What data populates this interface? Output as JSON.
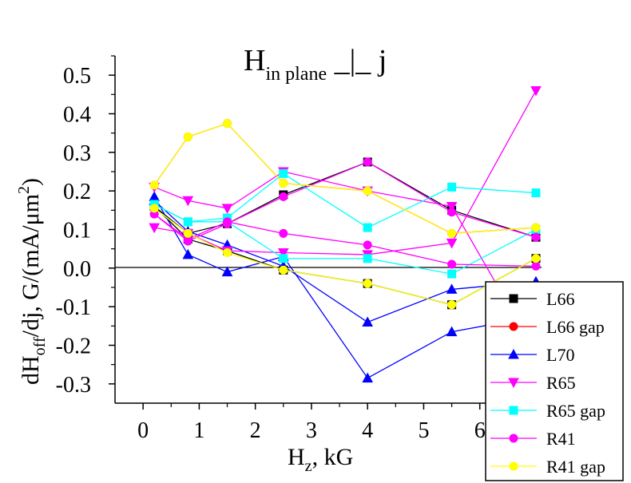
{
  "chart_data": {
    "type": "line",
    "title": {
      "main": "H",
      "sub": "in plane",
      "suffix": " _|_ j"
    },
    "xlabel": {
      "main": "H",
      "sub": "z",
      "suffix": ", kG"
    },
    "ylabel": {
      "p1": "dH",
      "sub": "off",
      "p2": "/dj, G/(mA/μm",
      "sup": "2",
      "p3": ")"
    },
    "xlim": [
      -0.5,
      7.1
    ],
    "ylim": [
      -0.35,
      0.55
    ],
    "xticks": [
      0,
      1,
      2,
      3,
      4,
      5,
      6
    ],
    "yticks": [
      -0.3,
      -0.2,
      -0.1,
      0.0,
      0.1,
      0.2,
      0.3,
      0.4,
      0.5
    ],
    "ytick_labels": [
      "-0.3",
      "-0.2",
      "-0.1",
      "0.0",
      "0.1",
      "0.2",
      "0.3",
      "0.4",
      "0.5"
    ],
    "zero_line": true,
    "grid": false,
    "legend_position": "bottom-right",
    "series": [
      {
        "name": "L66",
        "color": "#000000",
        "line_color": "#000000",
        "marker": "square",
        "points": [
          [
            [
              0.2,
              0.16
            ],
            [
              0.8,
              0.075
            ],
            [
              1.5,
              0.045
            ],
            [
              2.5,
              -0.005
            ],
            [
              4,
              -0.04
            ],
            [
              5.5,
              -0.095
            ],
            [
              7,
              0.025
            ]
          ],
          [
            [
              0.2,
              0.16
            ],
            [
              0.8,
              0.09
            ],
            [
              1.5,
              0.115
            ],
            [
              2.5,
              0.19
            ],
            [
              4,
              0.275
            ],
            [
              5.5,
              0.15
            ],
            [
              7,
              0.08
            ]
          ]
        ]
      },
      {
        "name": "L66 gap",
        "color": "#ff0000",
        "line_color": "#ff0000",
        "marker": "circle",
        "points": [
          [
            [
              0.2,
              0.215
            ],
            [
              0.8,
              0.34
            ],
            [
              1.5,
              0.375
            ],
            [
              2.5,
              0.22
            ],
            [
              4,
              0.2
            ],
            [
              5.5,
              0.09
            ],
            [
              7,
              0.105
            ]
          ]
        ]
      },
      {
        "name": "L70",
        "color": "#0000ff",
        "line_color": "#0000ff",
        "marker": "triangle-up",
        "points": [
          [
            [
              0.2,
              0.185
            ],
            [
              0.8,
              0.035
            ],
            [
              1.5,
              -0.01
            ],
            [
              2.5,
              0.03
            ],
            [
              4,
              -0.285
            ],
            [
              5.5,
              -0.165
            ],
            [
              7,
              -0.125
            ]
          ],
          [
            [
              0.2,
              0.175
            ],
            [
              0.8,
              0.095
            ],
            [
              1.5,
              0.06
            ],
            [
              2.5,
              0.005
            ],
            [
              4,
              -0.14
            ],
            [
              5.5,
              -0.055
            ],
            [
              7,
              -0.035
            ]
          ]
        ]
      },
      {
        "name": "R65",
        "color": "#ff00ff",
        "line_color": "#ff00ff",
        "marker": "triangle-down",
        "points": [
          [
            [
              0.2,
              0.21
            ],
            [
              0.8,
              0.175
            ],
            [
              1.5,
              0.155
            ],
            [
              2.5,
              0.25
            ],
            [
              4,
              0.2
            ],
            [
              5.5,
              0.16
            ],
            [
              7,
              -0.22
            ]
          ],
          [
            [
              0.2,
              0.105
            ],
            [
              0.8,
              0.09
            ],
            [
              1.5,
              0.045
            ],
            [
              2.5,
              0.04
            ],
            [
              4,
              0.035
            ],
            [
              5.5,
              0.065
            ],
            [
              7,
              0.46
            ]
          ]
        ]
      },
      {
        "name": "R65 gap",
        "color": "#00ffff",
        "line_color": "#00ffff",
        "marker": "square",
        "points": [
          [
            [
              0.2,
              0.165
            ],
            [
              0.8,
              0.12
            ],
            [
              1.5,
              0.13
            ],
            [
              2.5,
              0.245
            ],
            [
              4,
              0.105
            ],
            [
              5.5,
              0.21
            ],
            [
              7,
              0.195
            ]
          ],
          [
            [
              0.2,
              0.165
            ],
            [
              0.8,
              0.12
            ],
            [
              1.5,
              0.12
            ],
            [
              2.5,
              0.025
            ],
            [
              4,
              0.025
            ],
            [
              5.5,
              -0.015
            ],
            [
              7,
              0.1
            ]
          ]
        ]
      },
      {
        "name": "R41",
        "color": "#ff00ff",
        "line_color": "#ff00ff",
        "marker": "circle",
        "points": [
          [
            [
              0.2,
              0.14
            ],
            [
              0.8,
              0.07
            ],
            [
              1.5,
              0.115
            ],
            [
              2.5,
              0.185
            ],
            [
              4,
              0.275
            ],
            [
              5.5,
              0.145
            ],
            [
              7,
              0.08
            ]
          ],
          [
            [
              0.2,
              0.14
            ],
            [
              0.8,
              0.075
            ],
            [
              1.5,
              0.12
            ],
            [
              2.5,
              0.09
            ],
            [
              4,
              0.06
            ],
            [
              5.5,
              0.01
            ],
            [
              7,
              0.005
            ]
          ]
        ]
      },
      {
        "name": "R41 gap",
        "color": "#ffff00",
        "line_color": "#ffff00",
        "marker": "circle",
        "points": [
          [
            [
              0.2,
              0.155
            ],
            [
              0.8,
              0.09
            ],
            [
              1.5,
              0.04
            ],
            [
              2.5,
              -0.005
            ],
            [
              4,
              -0.04
            ],
            [
              5.5,
              -0.095
            ],
            [
              7,
              0.025
            ]
          ],
          [
            [
              0.2,
              0.215
            ],
            [
              0.8,
              0.34
            ],
            [
              1.5,
              0.375
            ],
            [
              2.5,
              0.22
            ],
            [
              4,
              0.2
            ],
            [
              5.5,
              0.09
            ],
            [
              7,
              0.105
            ]
          ]
        ]
      }
    ]
  }
}
